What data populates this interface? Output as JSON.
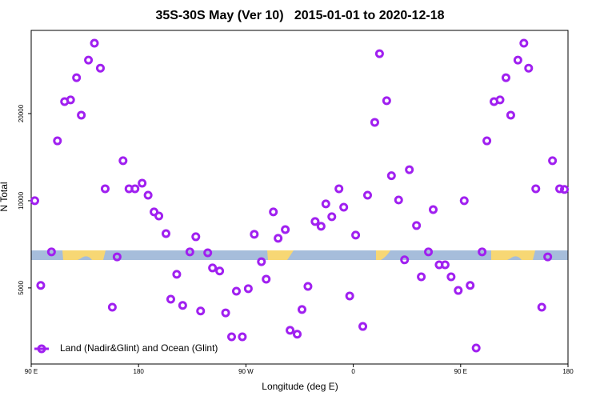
{
  "chart_data": {
    "type": "scatter",
    "title": "35S-30S May (Ver 10)   2015-01-01 to 2020-12-18",
    "x_label": "Longitude (deg E)",
    "y_label": "N Total",
    "xlim": [
      90,
      540
    ],
    "ylim": [
      2730,
      38750
    ],
    "log_y": true,
    "grid": false,
    "legend": "bottomleft",
    "xticks": [
      {
        "value": 90,
        "label": "90 E"
      },
      180,
      {
        "value": 270,
        "label": "90 W"
      },
      {
        "value": 360,
        "label": "0"
      },
      {
        "value": 450,
        "label": "90 E"
      },
      {
        "value": 540,
        "label": "180"
      }
    ],
    "yticks": [
      5000,
      10000,
      20000
    ],
    "x": [
      93,
      98,
      107,
      112,
      118,
      123,
      128,
      132,
      138,
      143,
      148,
      152,
      158,
      162,
      167,
      172,
      177,
      183,
      188,
      193,
      197,
      203,
      207,
      212,
      217,
      223,
      228,
      232,
      238,
      242,
      248,
      253,
      258,
      262,
      267,
      272,
      277,
      283,
      287,
      293,
      297,
      303,
      307,
      313,
      317,
      322,
      328,
      333,
      337,
      342,
      348,
      352,
      357,
      362,
      368,
      372,
      378,
      382,
      388,
      392,
      398,
      403,
      407,
      413,
      417,
      423,
      427,
      432,
      437,
      442,
      448,
      453,
      458,
      463,
      468,
      472,
      478,
      483,
      488,
      492,
      498,
      503,
      507,
      513,
      518,
      523,
      527,
      533,
      537
    ],
    "series": [
      {
        "name": "Land (Nadir&Glint) and Ocean (Glint)",
        "color": "#a020f0",
        "values": [
          10000,
          5100,
          6660,
          16100,
          22000,
          22300,
          26600,
          19750,
          30600,
          35000,
          28700,
          11000,
          4290,
          6400,
          13750,
          11000,
          11000,
          11500,
          10450,
          9150,
          8860,
          7700,
          4570,
          5570,
          4350,
          6660,
          7510,
          4160,
          6610,
          5860,
          5720,
          4100,
          3390,
          4870,
          3390,
          4970,
          7660,
          6160,
          5360,
          9150,
          7420,
          7950,
          3570,
          3460,
          4210,
          5060,
          8480,
          8160,
          9750,
          8810,
          11000,
          9500,
          4690,
          7610,
          3680,
          10450,
          18650,
          32200,
          22150,
          12200,
          10060,
          6250,
          12800,
          8210,
          5460,
          6660,
          9320,
          6010,
          6010,
          5460,
          4900,
          10000,
          5100,
          3100,
          6660,
          16100,
          22000,
          22300,
          26600,
          19750,
          30600,
          35000,
          28700,
          11000,
          4290,
          6400,
          13750,
          11000,
          10940
        ]
      }
    ]
  }
}
